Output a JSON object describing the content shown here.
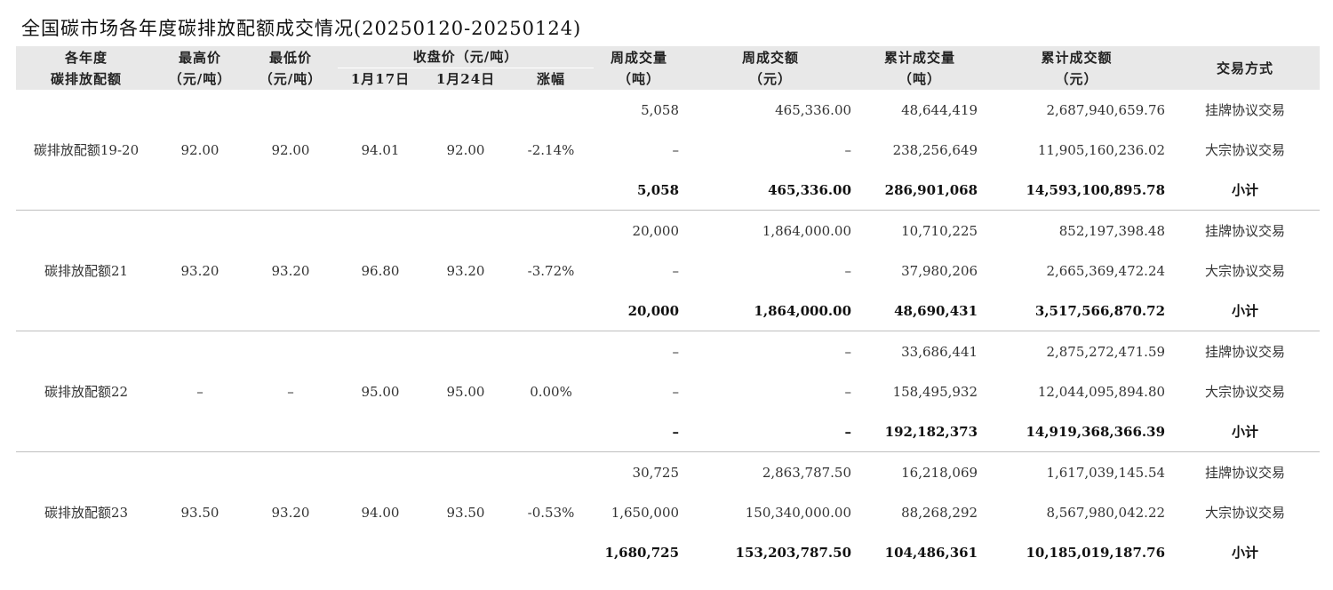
{
  "title": "全国碳市场各年度碳排放配额成交情况(20250120-20250124)",
  "headers": {
    "allowance": [
      "各年度",
      "碳排放配额"
    ],
    "high": [
      "最高价",
      "（元/吨）"
    ],
    "low": [
      "最低价",
      "（元/吨）"
    ],
    "closing": "收盘价（元/吨）",
    "jan17": "1月17日",
    "jan24": "1月24日",
    "change": "涨幅",
    "week_volume": [
      "周成交量",
      "（吨）"
    ],
    "week_amount": [
      "周成交额",
      "（元）"
    ],
    "cum_volume": [
      "累计成交量",
      "（吨）"
    ],
    "cum_amount": [
      "累计成交额",
      "（元）"
    ],
    "method": "交易方式"
  },
  "groups": [
    {
      "name": "碳排放配额19-20",
      "high": "92.00",
      "low": "92.00",
      "jan17": "94.01",
      "jan24": "92.00",
      "change": "-2.14%",
      "rows": [
        {
          "week_volume": "5,058",
          "week_amount": "465,336.00",
          "cum_volume": "48,644,419",
          "cum_amount": "2,687,940,659.76",
          "method": "挂牌协议交易"
        },
        {
          "week_volume": "–",
          "week_amount": "–",
          "cum_volume": "238,256,649",
          "cum_amount": "11,905,160,236.02",
          "method": "大宗协议交易"
        },
        {
          "week_volume": "5,058",
          "week_amount": "465,336.00",
          "cum_volume": "286,901,068",
          "cum_amount": "14,593,100,895.78",
          "method": "小计"
        }
      ]
    },
    {
      "name": "碳排放配额21",
      "high": "93.20",
      "low": "93.20",
      "jan17": "96.80",
      "jan24": "93.20",
      "change": "-3.72%",
      "rows": [
        {
          "week_volume": "20,000",
          "week_amount": "1,864,000.00",
          "cum_volume": "10,710,225",
          "cum_amount": "852,197,398.48",
          "method": "挂牌协议交易"
        },
        {
          "week_volume": "–",
          "week_amount": "–",
          "cum_volume": "37,980,206",
          "cum_amount": "2,665,369,472.24",
          "method": "大宗协议交易"
        },
        {
          "week_volume": "20,000",
          "week_amount": "1,864,000.00",
          "cum_volume": "48,690,431",
          "cum_amount": "3,517,566,870.72",
          "method": "小计"
        }
      ]
    },
    {
      "name": "碳排放配额22",
      "high": "–",
      "low": "–",
      "jan17": "95.00",
      "jan24": "95.00",
      "change": "0.00%",
      "rows": [
        {
          "week_volume": "–",
          "week_amount": "–",
          "cum_volume": "33,686,441",
          "cum_amount": "2,875,272,471.59",
          "method": "挂牌协议交易"
        },
        {
          "week_volume": "–",
          "week_amount": "–",
          "cum_volume": "158,495,932",
          "cum_amount": "12,044,095,894.80",
          "method": "大宗协议交易"
        },
        {
          "week_volume": "–",
          "week_amount": "–",
          "cum_volume": "192,182,373",
          "cum_amount": "14,919,368,366.39",
          "method": "小计"
        }
      ]
    },
    {
      "name": "碳排放配额23",
      "high": "93.50",
      "low": "93.20",
      "jan17": "94.00",
      "jan24": "93.50",
      "change": "-0.53%",
      "rows": [
        {
          "week_volume": "30,725",
          "week_amount": "2,863,787.50",
          "cum_volume": "16,218,069",
          "cum_amount": "1,617,039,145.54",
          "method": "挂牌协议交易"
        },
        {
          "week_volume": "1,650,000",
          "week_amount": "150,340,000.00",
          "cum_volume": "88,268,292",
          "cum_amount": "8,567,980,042.22",
          "method": "大宗协议交易"
        },
        {
          "week_volume": "1,680,725",
          "week_amount": "153,203,787.50",
          "cum_volume": "104,486,361",
          "cum_amount": "10,185,019,187.76",
          "method": "小计"
        }
      ]
    }
  ]
}
